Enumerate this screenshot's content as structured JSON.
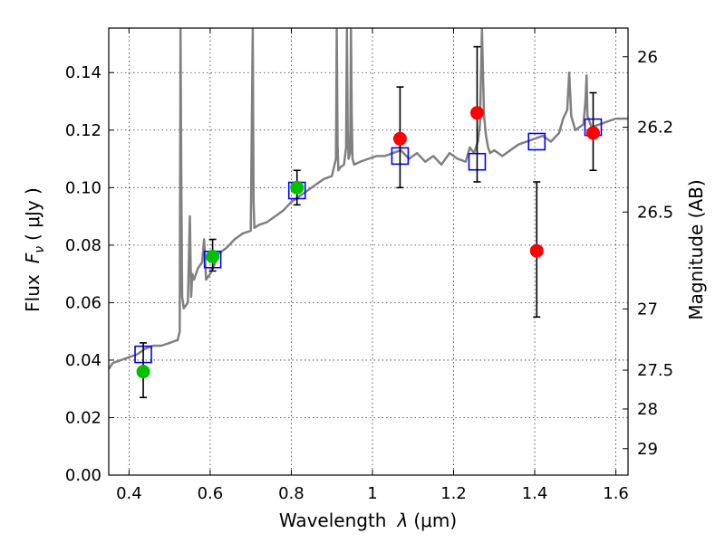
{
  "chart_data": {
    "type": "scatter",
    "xlabel_prefix": "Wavelength",
    "xlabel_symbol": "λ",
    "xlabel_unit": "(μm)",
    "ylabel_prefix": "Flux",
    "ylabel_symbol": "F",
    "ylabel_subscript": "ν",
    "ylabel_unit": "( μJy )",
    "y2label": "Magnitude (AB)",
    "xlim": [
      0.35,
      1.63
    ],
    "ylim": [
      0.0,
      0.1555
    ],
    "grid": true,
    "x_ticks": [
      0.4,
      0.6,
      0.8,
      1.0,
      1.2,
      1.4,
      1.6
    ],
    "x_tick_labels": [
      "0.4",
      "0.6",
      "0.8",
      "1",
      "1.2",
      "1.4",
      "1.6"
    ],
    "y_ticks": [
      0.0,
      0.02,
      0.04,
      0.06,
      0.08,
      0.1,
      0.12,
      0.14
    ],
    "y_tick_labels": [
      "0.00",
      "0.02",
      "0.04",
      "0.06",
      "0.08",
      "0.10",
      "0.12",
      "0.14"
    ],
    "y2_ticks": [
      {
        "label": "26",
        "flux": 0.1455
      },
      {
        "label": "26.2",
        "flux": 0.121
      },
      {
        "label": "26.5",
        "flux": 0.0915
      },
      {
        "label": "27",
        "flux": 0.0578
      },
      {
        "label": "27.5",
        "flux": 0.0365
      },
      {
        "label": "28",
        "flux": 0.023
      },
      {
        "label": "29",
        "flux": 0.0092
      }
    ],
    "series": [
      {
        "kind": "spectrum",
        "color": "#808080",
        "x": [
          0.35,
          0.36,
          0.38,
          0.4,
          0.42,
          0.44,
          0.46,
          0.48,
          0.5,
          0.52,
          0.525,
          0.527,
          0.529,
          0.531,
          0.535,
          0.545,
          0.55,
          0.553,
          0.556,
          0.56,
          0.57,
          0.58,
          0.585,
          0.59,
          0.6,
          0.61,
          0.62,
          0.64,
          0.66,
          0.68,
          0.7,
          0.705,
          0.707,
          0.709,
          0.72,
          0.74,
          0.76,
          0.78,
          0.8,
          0.82,
          0.84,
          0.86,
          0.88,
          0.9,
          0.91,
          0.912,
          0.914,
          0.916,
          0.92,
          0.93,
          0.935,
          0.937,
          0.939,
          0.941,
          0.945,
          0.947,
          0.949,
          0.951,
          0.955,
          0.97,
          0.99,
          1.01,
          1.03,
          1.05,
          1.07,
          1.09,
          1.11,
          1.13,
          1.15,
          1.17,
          1.19,
          1.21,
          1.23,
          1.24,
          1.25,
          1.26,
          1.265,
          1.27,
          1.275,
          1.28,
          1.285,
          1.29,
          1.3,
          1.32,
          1.34,
          1.36,
          1.38,
          1.4,
          1.42,
          1.44,
          1.46,
          1.47,
          1.48,
          1.485,
          1.49,
          1.5,
          1.51,
          1.52,
          1.525,
          1.528,
          1.53,
          1.54,
          1.56,
          1.58,
          1.6,
          1.63
        ],
        "y": [
          0.037,
          0.039,
          0.04,
          0.041,
          0.042,
          0.044,
          0.045,
          0.045,
          0.046,
          0.047,
          0.05,
          0.155,
          0.1,
          0.062,
          0.058,
          0.06,
          0.09,
          0.062,
          0.07,
          0.068,
          0.072,
          0.074,
          0.082,
          0.068,
          0.07,
          0.073,
          0.077,
          0.079,
          0.082,
          0.084,
          0.085,
          0.155,
          0.095,
          0.086,
          0.087,
          0.088,
          0.09,
          0.092,
          0.095,
          0.097,
          0.099,
          0.101,
          0.103,
          0.104,
          0.11,
          0.155,
          0.115,
          0.106,
          0.107,
          0.108,
          0.114,
          0.155,
          0.12,
          0.11,
          0.112,
          0.155,
          0.125,
          0.11,
          0.108,
          0.109,
          0.11,
          0.111,
          0.111,
          0.112,
          0.113,
          0.11,
          0.112,
          0.109,
          0.111,
          0.108,
          0.112,
          0.11,
          0.109,
          0.114,
          0.112,
          0.116,
          0.122,
          0.155,
          0.125,
          0.118,
          0.114,
          0.112,
          0.113,
          0.111,
          0.113,
          0.115,
          0.116,
          0.117,
          0.118,
          0.116,
          0.119,
          0.124,
          0.127,
          0.14,
          0.125,
          0.12,
          0.121,
          0.122,
          0.13,
          0.139,
          0.125,
          0.121,
          0.122,
          0.123,
          0.124,
          0.124
        ]
      },
      {
        "kind": "model-photometry",
        "marker": "open-square",
        "color": "#0000ff",
        "x": [
          0.435,
          0.606,
          0.814,
          1.068,
          1.258,
          1.405,
          1.544
        ],
        "y": [
          0.042,
          0.075,
          0.099,
          0.111,
          0.109,
          0.116,
          0.121
        ]
      },
      {
        "kind": "observed-optical",
        "marker": "filled-circle",
        "color": "#00c000",
        "x": [
          0.435,
          0.606,
          0.814
        ],
        "y": [
          0.036,
          0.076,
          0.1
        ],
        "yerr_low": [
          0.027,
          0.071,
          0.094
        ],
        "yerr_high": [
          0.046,
          0.082,
          0.106
        ]
      },
      {
        "kind": "observed-nir",
        "marker": "filled-circle",
        "color": "#ff0000",
        "x": [
          1.068,
          1.258,
          1.405,
          1.544
        ],
        "y": [
          0.117,
          0.126,
          0.078,
          0.119
        ],
        "yerr_low": [
          0.1,
          0.102,
          0.055,
          0.106
        ],
        "yerr_high": [
          0.135,
          0.149,
          0.102,
          0.133
        ]
      }
    ]
  }
}
